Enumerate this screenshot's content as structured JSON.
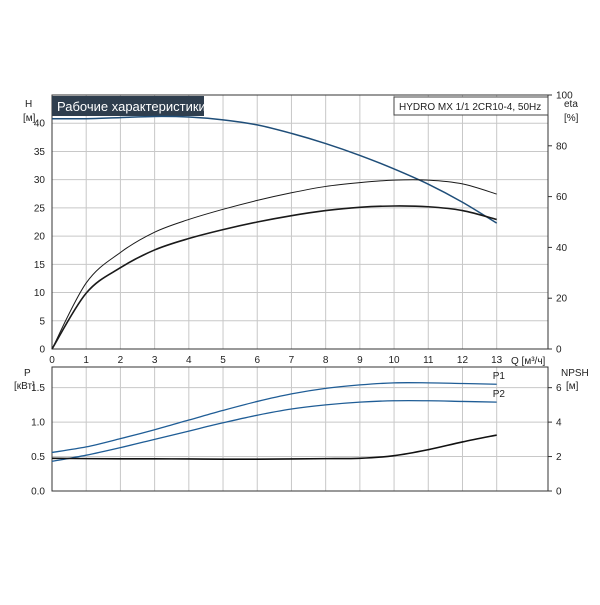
{
  "header": {
    "title": "Рабочие характеристики",
    "model": "HYDRO MX 1/1 2CR10-4, 50Hz"
  },
  "colors": {
    "head": "#1f4e79",
    "power": "#1f5d96",
    "eta": "#1a1a1a",
    "npsh": "#111111"
  },
  "chart_data": [
    {
      "type": "line",
      "panel": "top",
      "left_axis": {
        "label": "H",
        "unit": "[м]",
        "range": [
          0,
          45
        ],
        "ticks": [
          0,
          5,
          10,
          15,
          20,
          25,
          30,
          35,
          40
        ]
      },
      "right_axis": {
        "label": "eta",
        "unit": "[%]",
        "range": [
          0,
          100
        ],
        "ticks": [
          0,
          20,
          40,
          60,
          80,
          100
        ]
      },
      "x_axis": {
        "label": "Q [м³/ч]",
        "range": [
          0,
          14.5
        ],
        "ticks": [
          0,
          1,
          2,
          3,
          4,
          5,
          6,
          7,
          8,
          9,
          10,
          11,
          12,
          13
        ]
      },
      "grid": true,
      "series": [
        {
          "axis": "left",
          "style": "head",
          "x": [
            0,
            1,
            2,
            3,
            4,
            5,
            6,
            7,
            8,
            9,
            10,
            11,
            12,
            13
          ],
          "y": [
            40.8,
            40.8,
            41.0,
            41.2,
            41.1,
            40.6,
            39.7,
            38.2,
            36.4,
            34.3,
            31.9,
            29.2,
            26.0,
            22.3
          ]
        },
        {
          "axis": "right",
          "style": "eta-thin",
          "x": [
            0,
            1,
            2,
            3,
            4,
            5,
            6,
            7,
            8,
            9,
            10,
            11,
            12,
            13
          ],
          "y": [
            0,
            26,
            38,
            46,
            51,
            55,
            58.5,
            61.5,
            64,
            65.5,
            66.5,
            66.5,
            65,
            61
          ]
        },
        {
          "axis": "right",
          "style": "eta-thick",
          "x": [
            0,
            1,
            2,
            3,
            4,
            5,
            6,
            7,
            8,
            9,
            10,
            11,
            12,
            13
          ],
          "y": [
            0,
            22,
            32,
            39,
            43.5,
            47,
            50,
            52.5,
            54.5,
            55.8,
            56.3,
            56,
            54.5,
            51
          ]
        }
      ]
    },
    {
      "type": "line",
      "panel": "bottom",
      "left_axis": {
        "label": "P",
        "unit": "[кВт]",
        "range": [
          0,
          1.8
        ],
        "ticks": [
          "0.0",
          "0.5",
          "1.0",
          "1.5"
        ]
      },
      "right_axis": {
        "label": "NPSH",
        "unit": "[м]",
        "range": [
          0,
          7.2
        ],
        "ticks": [
          0,
          2,
          4,
          6
        ]
      },
      "x_axis": {
        "range": [
          0,
          14.5
        ]
      },
      "grid": true,
      "series": [
        {
          "name": "P1",
          "axis": "left",
          "style": "power",
          "x": [
            0,
            1,
            2,
            3,
            4,
            5,
            6,
            7,
            8,
            9,
            10,
            11,
            12,
            13
          ],
          "y": [
            0.56,
            0.64,
            0.76,
            0.89,
            1.03,
            1.17,
            1.3,
            1.41,
            1.49,
            1.54,
            1.57,
            1.57,
            1.56,
            1.55
          ]
        },
        {
          "name": "P2",
          "axis": "left",
          "style": "power",
          "x": [
            0,
            1,
            2,
            3,
            4,
            5,
            6,
            7,
            8,
            9,
            10,
            11,
            12,
            13
          ],
          "y": [
            0.43,
            0.52,
            0.63,
            0.75,
            0.87,
            0.99,
            1.1,
            1.19,
            1.25,
            1.29,
            1.31,
            1.31,
            1.3,
            1.29
          ]
        },
        {
          "axis": "right",
          "style": "npsh",
          "x": [
            0,
            1,
            2,
            3,
            4,
            5,
            6,
            7,
            8,
            9,
            10,
            11,
            12,
            13
          ],
          "y": [
            1.9,
            1.88,
            1.87,
            1.87,
            1.86,
            1.85,
            1.85,
            1.86,
            1.88,
            1.9,
            2.05,
            2.4,
            2.85,
            3.25
          ]
        }
      ]
    }
  ]
}
